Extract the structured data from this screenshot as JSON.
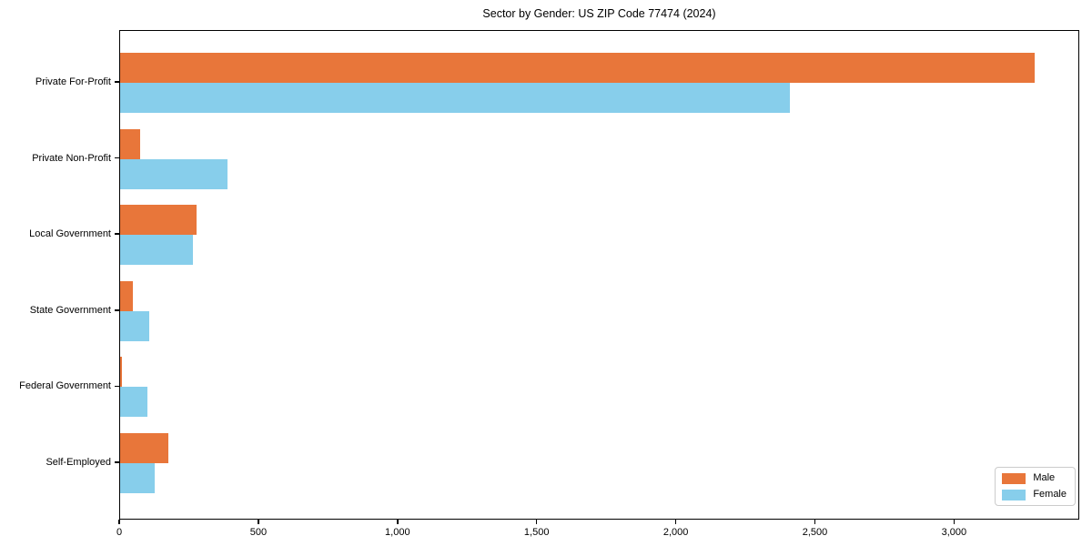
{
  "chart_data": {
    "type": "bar",
    "orientation": "horizontal",
    "title": "Sector by Gender: US ZIP Code 77474 (2024)",
    "categories": [
      "Private For-Profit",
      "Private Non-Profit",
      "Local Government",
      "State Government",
      "Federal Government",
      "Self-Employed"
    ],
    "series": [
      {
        "name": "Male",
        "color": "#e8763a",
        "values": [
          3285,
          73,
          275,
          46,
          5,
          173
        ]
      },
      {
        "name": "Female",
        "color": "#87ceeb",
        "values": [
          2407,
          387,
          261,
          104,
          98,
          125
        ]
      }
    ],
    "xlabel": "",
    "ylabel": "",
    "xlim": [
      0,
      3450
    ],
    "xticks": [
      0,
      500,
      1000,
      1500,
      2000,
      2500,
      3000
    ],
    "xtick_labels": [
      "0",
      "500",
      "1,000",
      "1,500",
      "2,000",
      "2,500",
      "3,000"
    ],
    "grid": false,
    "legend": {
      "position": "lower right"
    }
  },
  "colors": {
    "axis": "#000000",
    "background": "#ffffff",
    "legend_border": "#cccccc",
    "male": "#e8763a",
    "female": "#87ceeb"
  }
}
